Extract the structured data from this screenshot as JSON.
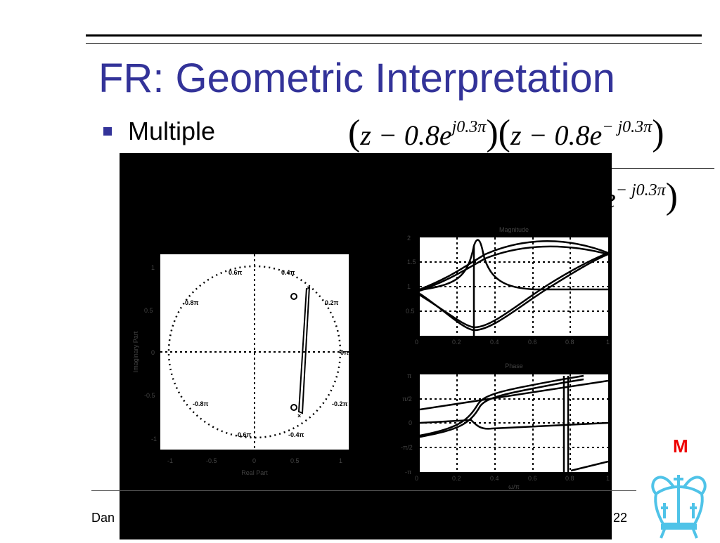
{
  "slide": {
    "title": "FR: Geometric Interpretation",
    "bullet_text": "Multiple",
    "equation_numerator": {
      "factor1_base": "z − 0.8e",
      "factor1_exp": "j0.3π",
      "factor2_base": "z − 0.8e",
      "factor2_exp": "− j0.3π"
    },
    "equation_denominator_visible": {
      "base": "e",
      "exp": "− j0.3π"
    },
    "footer_left": "Dan",
    "page_number": "22",
    "marker": "M",
    "logo_color": "#4fc3e8",
    "title_color": "#333399"
  },
  "pole_zero_plot": {
    "xlabel": "Real Part",
    "ylabel": "Imaginary Part",
    "xticks": [
      "-1",
      "-0.5",
      "0",
      "0.5",
      "1"
    ],
    "yticks": [
      "1",
      "0.5",
      "0",
      "-0.5",
      "-1"
    ],
    "circle_labels": [
      "0.6π",
      "0.4π",
      "0.8π",
      "0.2π",
      "0π",
      "-0.8π",
      "-0.2π",
      "-0.6π",
      "-0.4π"
    ]
  },
  "magnitude_plot": {
    "title": "Magnitude",
    "yticks": [
      "2",
      "1.5",
      "1",
      "0.5",
      "0"
    ],
    "xticks": [
      "0",
      "0.2",
      "0.4",
      "0.6",
      "0.8",
      "1"
    ]
  },
  "phase_plot": {
    "title": "Phase",
    "yticks": [
      "π",
      "π/2",
      "0",
      "-π/2",
      "-π"
    ],
    "xticks": [
      "0",
      "0.2",
      "0.4",
      "0.6",
      "0.8",
      "1"
    ],
    "xlabel": "ω/π"
  }
}
